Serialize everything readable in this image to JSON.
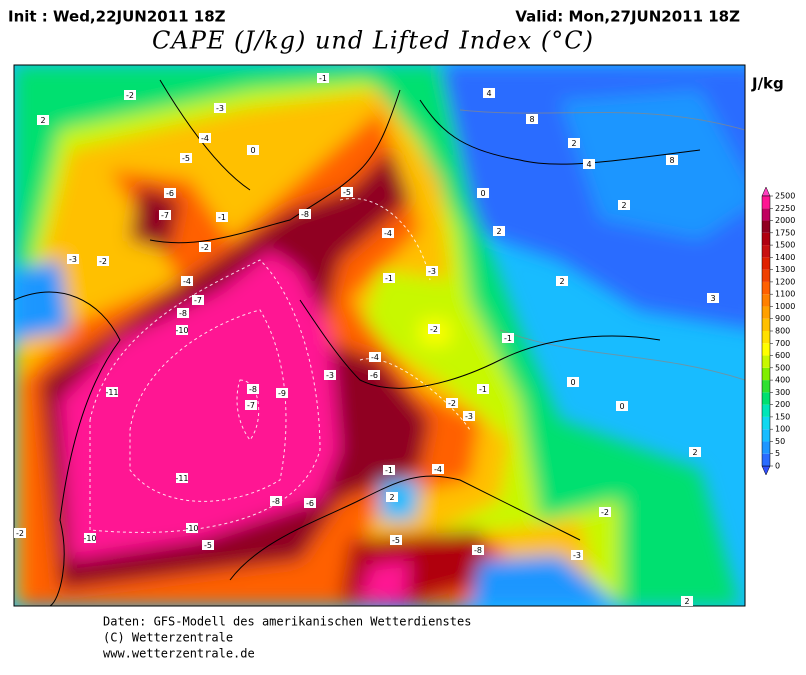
{
  "header": {
    "init": "Init : Wed,22JUN2011 18Z",
    "valid": "Valid: Mon,27JUN2011 18Z",
    "title": "CAPE (J/kg) und Lifted Index (°C)",
    "unit": "J/kg"
  },
  "legend": {
    "levels": [
      0,
      5,
      50,
      100,
      150,
      200,
      300,
      400,
      500,
      600,
      700,
      800,
      900,
      1000,
      1100,
      1200,
      1300,
      1400,
      1500,
      1750,
      2000,
      2250,
      2500
    ],
    "colors": [
      "#2a6cff",
      "#1e96ff",
      "#18bcff",
      "#10d8f0",
      "#00e6b8",
      "#00e070",
      "#30e030",
      "#80ee00",
      "#c8f800",
      "#ffff00",
      "#ffe000",
      "#ffc000",
      "#ffa000",
      "#ff8000",
      "#ff6000",
      "#f04000",
      "#e02000",
      "#c81010",
      "#b00010",
      "#900020",
      "#c00060",
      "#ff1493"
    ]
  },
  "contour_labels": [
    "-2",
    "-1",
    "-3",
    "-4",
    "-5",
    "-6",
    "-7",
    "-1",
    "-2",
    "-3",
    "-2",
    "-4",
    "-7",
    "-8",
    "-10",
    "-11",
    "-8",
    "-7",
    "-9",
    "-11",
    "-10",
    "-10",
    "-5",
    "-8",
    "-5",
    "-4",
    "-1",
    "-3",
    "-2",
    "-4",
    "-3",
    "-6",
    "-1",
    "-2",
    "-3",
    "-1",
    "-4",
    "-6",
    "-8",
    "-5",
    "-8",
    "-2",
    "-3",
    "2",
    "4",
    "8",
    "2",
    "4",
    "8",
    "2",
    "2",
    "2",
    "3",
    "-1",
    "0",
    "0",
    "2",
    "-2",
    "2",
    "0",
    "0",
    "2"
  ],
  "footer": [
    "Daten: GFS-Modell des amerikanischen Wetterdienstes",
    "(C) Wetterzentrale",
    "www.wetterzentrale.de"
  ]
}
